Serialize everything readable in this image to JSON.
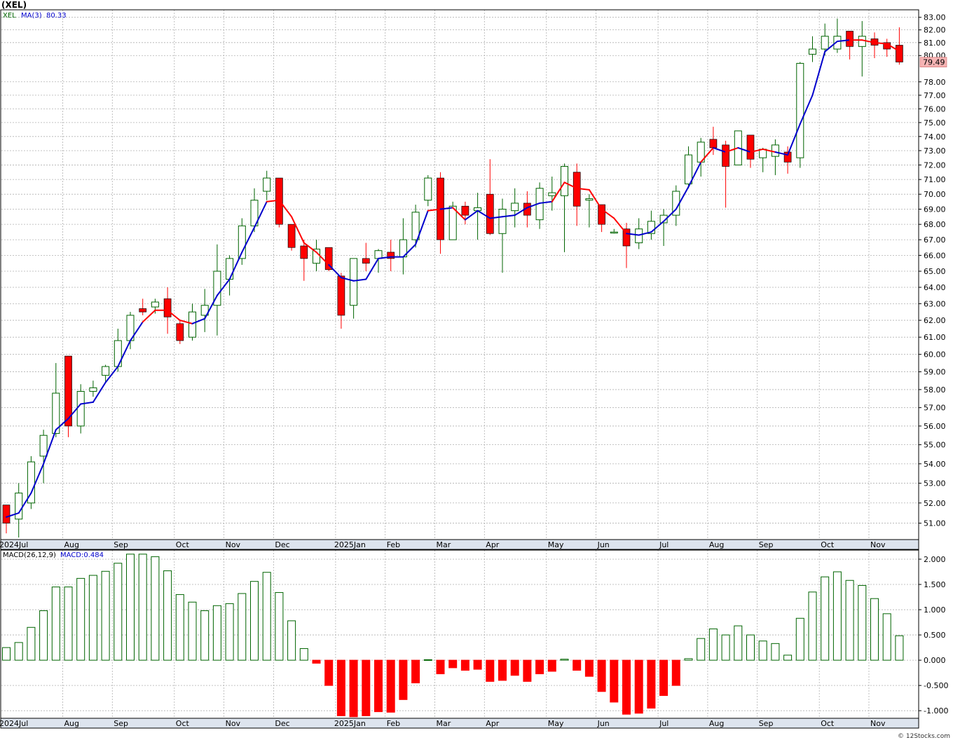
{
  "title": "(XEL)",
  "credit": "© 12Stocks.com",
  "colors": {
    "up": "#006400",
    "down": "#ff0000",
    "ma_up": "#0000cc",
    "ma_down": "#ff0000",
    "grid": "#b0b0b0",
    "axis_strip": "#dde4ee",
    "price_tag": "#f6b3b3"
  },
  "chart_data": [
    {
      "type": "candlestick",
      "legend": {
        "symbol": "XEL",
        "ma_label": "MA(3)",
        "ma_value": "80.33"
      },
      "last_price": "79.49",
      "ylim": [
        50.2,
        83.6
      ],
      "yticks": [
        "51.00",
        "52.00",
        "53.00",
        "54.00",
        "55.00",
        "56.00",
        "57.00",
        "58.00",
        "59.00",
        "60.00",
        "61.00",
        "62.00",
        "63.00",
        "64.00",
        "65.00",
        "66.00",
        "67.00",
        "68.00",
        "69.00",
        "70.00",
        "71.00",
        "72.00",
        "73.00",
        "74.00",
        "75.00",
        "76.00",
        "77.00",
        "78.00",
        "80.00",
        "81.00",
        "82.00",
        "83.00"
      ],
      "log_scale": true,
      "grid": true,
      "month_labels": [
        {
          "label": "2024Jul",
          "week": 0
        },
        {
          "label": "Aug",
          "week": 5
        },
        {
          "label": "Sep",
          "week": 9
        },
        {
          "label": "Oct",
          "week": 14
        },
        {
          "label": "Nov",
          "week": 18
        },
        {
          "label": "Dec",
          "week": 22
        },
        {
          "label": "2025Jan",
          "week": 27
        },
        {
          "label": "Feb",
          "week": 31
        },
        {
          "label": "Mar",
          "week": 35
        },
        {
          "label": "Apr",
          "week": 39
        },
        {
          "label": "May",
          "week": 44
        },
        {
          "label": "Jun",
          "week": 48
        },
        {
          "label": "Jul",
          "week": 53
        },
        {
          "label": "Aug",
          "week": 57
        },
        {
          "label": "Sep",
          "week": 61
        },
        {
          "label": "Oct",
          "week": 66
        },
        {
          "label": "Nov",
          "week": 70
        }
      ],
      "candles": [
        [
          51.9,
          51.9,
          50.5,
          51.0
        ],
        [
          51.2,
          53.0,
          50.3,
          52.5
        ],
        [
          52.0,
          54.4,
          51.7,
          54.1
        ],
        [
          54.4,
          55.8,
          53.0,
          55.5
        ],
        [
          55.6,
          59.5,
          55.4,
          57.8
        ],
        [
          59.9,
          59.9,
          55.4,
          56.0
        ],
        [
          56.0,
          58.3,
          55.6,
          57.9
        ],
        [
          57.9,
          58.5,
          57.6,
          58.1
        ],
        [
          58.8,
          59.4,
          58.4,
          59.3
        ],
        [
          59.3,
          61.5,
          59.0,
          60.8
        ],
        [
          60.8,
          62.5,
          60.3,
          62.3
        ],
        [
          62.7,
          63.3,
          62.3,
          62.5
        ],
        [
          62.8,
          63.3,
          62.4,
          63.1
        ],
        [
          63.3,
          64.0,
          61.2,
          62.2
        ],
        [
          61.8,
          62.0,
          60.6,
          60.8
        ],
        [
          61.0,
          63.0,
          60.8,
          62.5
        ],
        [
          62.3,
          63.9,
          61.3,
          62.9
        ],
        [
          62.9,
          66.7,
          61.1,
          65.0
        ],
        [
          64.5,
          66.0,
          63.5,
          65.8
        ],
        [
          65.8,
          68.4,
          65.4,
          67.9
        ],
        [
          67.9,
          70.4,
          67.5,
          69.6
        ],
        [
          70.2,
          71.6,
          69.6,
          71.1
        ],
        [
          71.1,
          71.1,
          67.8,
          68.0
        ],
        [
          68.0,
          68.0,
          66.3,
          66.5
        ],
        [
          66.6,
          67.0,
          64.4,
          65.8
        ],
        [
          65.5,
          67.0,
          65.0,
          66.4
        ],
        [
          66.5,
          66.5,
          65.0,
          65.1
        ],
        [
          64.7,
          64.9,
          61.5,
          62.3
        ],
        [
          62.9,
          65.8,
          62.1,
          65.8
        ],
        [
          65.8,
          66.8,
          65.0,
          65.5
        ],
        [
          65.8,
          66.4,
          64.9,
          66.3
        ],
        [
          66.2,
          67.0,
          65.0,
          65.8
        ],
        [
          65.9,
          68.4,
          64.8,
          67.0
        ],
        [
          67.0,
          69.3,
          66.5,
          68.8
        ],
        [
          69.6,
          71.3,
          69.2,
          71.1
        ],
        [
          71.1,
          71.5,
          66.1,
          67.0
        ],
        [
          67.0,
          69.5,
          67.0,
          69.2
        ],
        [
          69.2,
          69.5,
          68.0,
          68.6
        ],
        [
          68.9,
          70.1,
          67.0,
          69.1
        ],
        [
          70.0,
          72.4,
          67.3,
          67.4
        ],
        [
          67.4,
          69.7,
          64.9,
          69.0
        ],
        [
          68.9,
          70.4,
          67.8,
          69.4
        ],
        [
          69.4,
          70.2,
          67.8,
          68.6
        ],
        [
          68.3,
          70.8,
          67.7,
          70.4
        ],
        [
          69.9,
          71.2,
          68.9,
          70.1
        ],
        [
          69.9,
          72.1,
          66.2,
          71.9
        ],
        [
          71.5,
          72.1,
          67.9,
          69.2
        ],
        [
          69.6,
          70.0,
          67.8,
          69.7
        ],
        [
          69.3,
          69.3,
          67.5,
          68.0
        ],
        [
          67.5,
          67.7,
          67.4,
          67.5
        ],
        [
          67.7,
          68.1,
          65.2,
          66.6
        ],
        [
          66.8,
          68.4,
          66.4,
          67.7
        ],
        [
          67.4,
          68.9,
          67.0,
          68.2
        ],
        [
          68.1,
          69.0,
          66.6,
          68.6
        ],
        [
          68.6,
          70.6,
          67.9,
          70.2
        ],
        [
          70.7,
          73.3,
          70.4,
          72.7
        ],
        [
          72.2,
          73.9,
          71.2,
          73.6
        ],
        [
          73.8,
          74.7,
          72.7,
          73.2
        ],
        [
          73.4,
          73.7,
          69.1,
          71.9
        ],
        [
          72.0,
          74.4,
          72.0,
          74.4
        ],
        [
          74.1,
          74.1,
          71.8,
          72.4
        ],
        [
          72.5,
          73.2,
          71.5,
          73.1
        ],
        [
          72.6,
          73.8,
          71.3,
          73.4
        ],
        [
          72.9,
          73.3,
          71.4,
          72.2
        ],
        [
          72.5,
          79.5,
          71.8,
          79.4
        ],
        [
          80.1,
          81.5,
          79.5,
          80.5
        ],
        [
          80.5,
          82.5,
          80.0,
          81.5
        ],
        [
          80.5,
          82.9,
          80.2,
          81.5
        ],
        [
          81.9,
          81.9,
          79.7,
          80.7
        ],
        [
          80.7,
          82.7,
          78.4,
          81.5
        ],
        [
          81.3,
          81.8,
          79.8,
          80.8
        ],
        [
          81.0,
          81.3,
          79.9,
          80.5
        ],
        [
          80.8,
          82.2,
          79.3,
          79.5
        ]
      ],
      "ma3": [
        51.3,
        51.5,
        52.5,
        54.0,
        55.8,
        56.4,
        57.2,
        57.3,
        58.4,
        59.3,
        60.8,
        61.9,
        62.6,
        62.6,
        62.0,
        61.8,
        62.1,
        63.5,
        64.5,
        66.2,
        67.8,
        69.5,
        69.6,
        68.5,
        66.8,
        66.2,
        65.4,
        64.6,
        64.4,
        64.5,
        65.8,
        65.9,
        65.9,
        66.7,
        68.9,
        69.0,
        69.1,
        68.3,
        68.9,
        68.4,
        68.5,
        68.6,
        69.1,
        69.4,
        69.5,
        70.8,
        70.4,
        70.3,
        69.0,
        68.4,
        67.4,
        67.3,
        67.5,
        68.2,
        69.0,
        70.5,
        72.2,
        73.2,
        72.9,
        73.2,
        72.9,
        73.1,
        72.9,
        72.7,
        74.9,
        77.0,
        80.3,
        81.1,
        81.2,
        81.2,
        81.0,
        80.9,
        80.33
      ],
      "ma_trend_up": [
        true,
        true,
        true,
        true,
        true,
        true,
        true,
        true,
        true,
        true,
        true,
        true,
        false,
        false,
        false,
        false,
        true,
        true,
        true,
        true,
        true,
        true,
        false,
        false,
        false,
        false,
        false,
        true,
        true,
        true,
        true,
        true,
        true,
        true,
        true,
        false,
        true,
        false,
        true,
        true,
        true,
        true,
        true,
        true,
        true,
        false,
        false,
        false,
        false,
        false,
        false,
        true,
        true,
        true,
        true,
        true,
        true,
        false,
        true,
        false,
        true,
        false,
        false,
        true,
        true,
        true,
        true,
        true,
        true,
        false,
        false,
        false,
        false
      ]
    },
    {
      "type": "bar",
      "legend": {
        "name": "MACD(26,12,9)",
        "value_label": "MACD:0.484"
      },
      "ylim": [
        -1.15,
        2.18
      ],
      "yticks": [
        "2.000",
        "1.500",
        "1.000",
        "0.500",
        "0.000",
        "-0.500",
        "-1.000"
      ],
      "ytick_values": [
        2.0,
        1.5,
        1.0,
        0.5,
        0.0,
        -0.5,
        -1.0
      ],
      "values": [
        0.25,
        0.35,
        0.65,
        0.98,
        1.45,
        1.45,
        1.62,
        1.68,
        1.76,
        1.92,
        2.1,
        2.1,
        2.05,
        1.77,
        1.3,
        1.15,
        0.98,
        1.08,
        1.12,
        1.32,
        1.56,
        1.74,
        1.34,
        0.78,
        0.23,
        -0.06,
        -0.5,
        -1.1,
        -1.12,
        -1.1,
        -1.02,
        -1.03,
        -0.78,
        -0.45,
        0.01,
        -0.27,
        -0.15,
        -0.2,
        -0.18,
        -0.42,
        -0.4,
        -0.3,
        -0.42,
        -0.27,
        -0.22,
        0.02,
        -0.2,
        -0.32,
        -0.62,
        -0.83,
        -1.07,
        -1.05,
        -0.95,
        -0.7,
        -0.5,
        0.03,
        0.43,
        0.62,
        0.5,
        0.68,
        0.5,
        0.38,
        0.33,
        0.1,
        0.83,
        1.35,
        1.65,
        1.75,
        1.58,
        1.48,
        1.22,
        0.92,
        0.484
      ]
    }
  ]
}
